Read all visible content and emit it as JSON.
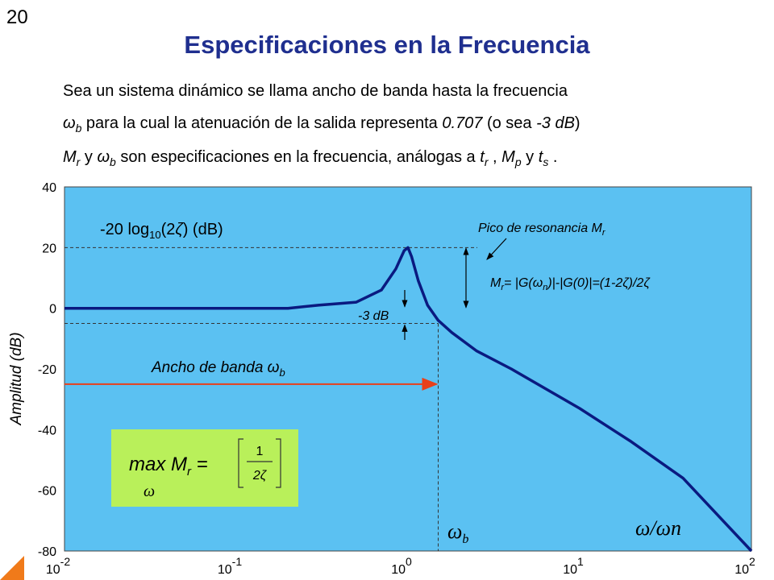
{
  "slide_number": "20",
  "title": "Especificaciones en la Frecuencia",
  "text": {
    "line1": "Sea un sistema dinámico se llama ancho de banda hasta la frecuencia",
    "line2_sym": "ω",
    "line2_sub": "b",
    "line2_a": " para la cual la atenuación de la salida representa ",
    "line2_val": "0.707",
    "line2_b": " (o sea ",
    "line2_db": "-3 dB",
    "line2_c": ")",
    "line3_m": "M",
    "line3_r": "r",
    "line3_y": " y ",
    "line3_w": "ω",
    "line3_b": "b",
    "line3_rest": " son especificaciones en la frecuencia, análogas a ",
    "line3_t": "t",
    "line3_tr": "r",
    "line3_comma": " , ",
    "line3_mp": "M",
    "line3_p": "p",
    "line3_y2": " y ",
    "line3_ts": "t",
    "line3_s": "s",
    "line3_end": " ."
  },
  "chart_data": {
    "type": "line",
    "xscale": "log",
    "xlim": [
      0.01,
      100
    ],
    "ylim": [
      -80,
      40
    ],
    "ylabel": "Amplitud (dB)",
    "xlabel": "ω/ωn",
    "y_ticks": [
      "40",
      "20",
      "0",
      "-20",
      "-40",
      "-60",
      "-80"
    ],
    "x_ticks": [
      {
        "base": "10",
        "exp": "-2"
      },
      {
        "base": "10",
        "exp": "-1"
      },
      {
        "base": "10",
        "exp": "0"
      },
      {
        "base": "10",
        "exp": "1"
      },
      {
        "base": "10",
        "exp": "2"
      }
    ],
    "series": [
      {
        "x": [
          0.01,
          0.2,
          0.3,
          0.5,
          0.7,
          0.85,
          0.95,
          1.0,
          1.05,
          1.15,
          1.3,
          1.5,
          1.8,
          2.5,
          4,
          10,
          20,
          40,
          100
        ],
        "y": [
          0,
          0,
          1,
          2,
          6,
          13,
          19,
          20,
          17,
          9,
          1,
          -4,
          -8,
          -14,
          -20,
          -33,
          -44,
          -56,
          -80
        ]
      }
    ],
    "bandwidth_x": 1.5,
    "level_lines_db": [
      20,
      -5
    ],
    "annotations": {
      "peak_formula": "-20 log10(2ζ) (dB)",
      "resonance_label": "Pico de resonancia M",
      "resonance_sub": "r",
      "mr_formula": "M = |G(ω)|-|G(0)|=(1-2ζ)/2ζ",
      "mr_formula_a": "M",
      "mr_formula_sub": "r",
      "mr_formula_b": "= |G(",
      "mr_formula_w": "ω",
      "mr_formula_n": "n",
      "mr_formula_c": ")|-|G(0)|=(1-2",
      "mr_formula_z": "ζ",
      "mr_formula_d": ")/2",
      "mr_formula_z2": "ζ",
      "minus3db": "-3 dB",
      "bandwidth_label": "Ancho de banda ω",
      "bandwidth_label_sub": "b",
      "wb_label": "ω",
      "wb_sub": "b",
      "peak_text_a": "-20 log",
      "peak_text_sub": "10",
      "peak_text_b": "(2",
      "peak_text_z": "ζ",
      "peak_text_c": ") (dB)"
    },
    "max_box": {
      "prefix": "max M",
      "prefix_sub": "r",
      "equals": " =",
      "numerator": "1",
      "denominator": "2ζ",
      "under": "ω"
    },
    "colors": {
      "plot_bg": "#5bc1f2",
      "curve": "#0a1a80",
      "arrow_red": "#e8401a",
      "box_bg": "#b9f05a",
      "title": "#1f2f8f"
    }
  }
}
